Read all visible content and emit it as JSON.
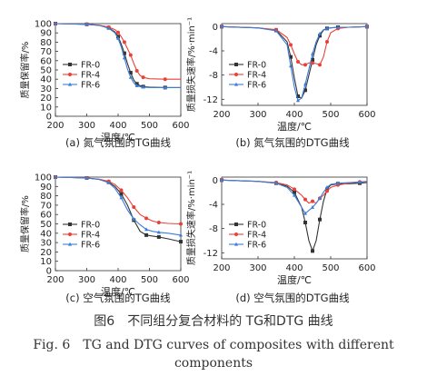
{
  "chart_data": [
    {
      "type": "line",
      "panel": "a",
      "caption": "(a) 氮气氛围的TG曲线",
      "xlabel": "温度/℃",
      "ylabel": "质量保留率/%",
      "xlim": [
        200,
        600
      ],
      "ylim": [
        0,
        100
      ],
      "xticks": [
        200,
        300,
        400,
        500,
        600
      ],
      "yticks": [
        0,
        10,
        20,
        30,
        40,
        50,
        60,
        70,
        80,
        90,
        100
      ],
      "legend_position": "left-middle",
      "x": [
        200,
        250,
        300,
        340,
        370,
        390,
        400,
        410,
        420,
        430,
        440,
        450,
        460,
        470,
        480,
        500,
        550,
        600
      ],
      "series": [
        {
          "name": "FR-0",
          "color": "#333333",
          "values": [
            100,
            99.7,
            99.2,
            98,
            95.5,
            91,
            86,
            78,
            68,
            57,
            47,
            39,
            35,
            33,
            32,
            31.5,
            31,
            31
          ]
        },
        {
          "name": "FR-4",
          "color": "#e8413a",
          "values": [
            100,
            99.7,
            99.3,
            98.3,
            96.2,
            93.5,
            90.5,
            86,
            80,
            73,
            66,
            57,
            49,
            44,
            42,
            40.5,
            40,
            40
          ]
        },
        {
          "name": "FR-6",
          "color": "#3b7dd8",
          "values": [
            100,
            99.7,
            99.2,
            98,
            95,
            90,
            84,
            75,
            63,
            51,
            42,
            36,
            33,
            32,
            31.5,
            31,
            31,
            31
          ]
        }
      ]
    },
    {
      "type": "line",
      "panel": "b",
      "caption": "(b) 氮气氛围的DTG曲线",
      "xlabel": "温度/℃",
      "ylabel": "质量损失速率/%·min⁻¹",
      "xlim": [
        200,
        600
      ],
      "ylim": [
        -13,
        0.5
      ],
      "xticks": [
        200,
        300,
        400,
        500,
        600
      ],
      "yticks": [
        0,
        -4,
        -8,
        -12
      ],
      "legend_position": "left-middle",
      "x": [
        200,
        300,
        350,
        380,
        390,
        400,
        410,
        420,
        430,
        440,
        450,
        460,
        470,
        480,
        490,
        500,
        520,
        550,
        600
      ],
      "series": [
        {
          "name": "FR-0",
          "color": "#333333",
          "values": [
            0,
            -0.2,
            -0.6,
            -2.5,
            -5,
            -8.5,
            -11.5,
            -11.8,
            -10.5,
            -8,
            -5.5,
            -3,
            -1.5,
            -0.6,
            -0.3,
            -0.2,
            -0.1,
            -0.1,
            0
          ]
        },
        {
          "name": "FR-4",
          "color": "#e8413a",
          "values": [
            0,
            -0.2,
            -0.5,
            -1.8,
            -3,
            -4.5,
            -5.8,
            -6.3,
            -6.3,
            -6,
            -6,
            -6.1,
            -6.3,
            -5,
            -2.5,
            -1,
            -0.3,
            -0.1,
            0
          ]
        },
        {
          "name": "FR-6",
          "color": "#3b7dd8",
          "values": [
            0,
            -0.2,
            -0.7,
            -3,
            -6.5,
            -10,
            -12.2,
            -11.8,
            -9.5,
            -7,
            -4.5,
            -2.5,
            -1.2,
            -0.5,
            -0.3,
            -0.2,
            -0.1,
            -0.1,
            0
          ]
        }
      ]
    },
    {
      "type": "line",
      "panel": "c",
      "caption": "(c) 空气氛围的TG曲线",
      "xlabel": "温度/℃",
      "ylabel": "质量保留率/%",
      "xlim": [
        200,
        600
      ],
      "ylim": [
        0,
        100
      ],
      "xticks": [
        200,
        300,
        400,
        500,
        600
      ],
      "yticks": [
        0,
        10,
        20,
        30,
        40,
        50,
        60,
        70,
        80,
        90,
        100
      ],
      "legend_position": "left-middle",
      "x": [
        200,
        250,
        300,
        340,
        370,
        390,
        410,
        430,
        450,
        470,
        490,
        510,
        530,
        560,
        600
      ],
      "series": [
        {
          "name": "FR-0",
          "color": "#333333",
          "values": [
            100,
            99.6,
            99,
            97.5,
            94.5,
            90,
            82,
            70,
            54,
            42,
            38,
            37,
            36,
            34,
            31
          ]
        },
        {
          "name": "FR-4",
          "color": "#e8413a",
          "values": [
            100,
            99.6,
            99,
            97.8,
            95.5,
            92,
            86,
            78,
            68,
            60,
            56,
            53,
            51.5,
            50.5,
            50
          ]
        },
        {
          "name": "FR-6",
          "color": "#3b7dd8",
          "values": [
            100,
            99.6,
            99,
            97.5,
            94,
            88,
            78,
            65,
            55,
            49,
            44,
            42,
            41,
            40,
            38
          ]
        }
      ]
    },
    {
      "type": "line",
      "panel": "d",
      "caption": "(d) 空气氛围的DTG曲线",
      "xlabel": "温度/℃",
      "ylabel": "质量损失速率/%·min⁻¹",
      "xlim": [
        200,
        600
      ],
      "ylim": [
        -13,
        0.5
      ],
      "xticks": [
        200,
        300,
        400,
        500,
        600
      ],
      "yticks": [
        0,
        -4,
        -8,
        -12
      ],
      "legend_position": "left-middle",
      "x": [
        200,
        300,
        350,
        380,
        400,
        420,
        430,
        440,
        450,
        460,
        470,
        480,
        490,
        500,
        520,
        550,
        580,
        600
      ],
      "series": [
        {
          "name": "FR-0",
          "color": "#333333",
          "values": [
            0,
            -0.2,
            -0.5,
            -1,
            -2,
            -4.5,
            -7,
            -10,
            -11.7,
            -10,
            -6.5,
            -3.5,
            -1.5,
            -0.8,
            -0.6,
            -0.6,
            -0.5,
            -0.4
          ]
        },
        {
          "name": "FR-4",
          "color": "#e8413a",
          "values": [
            0,
            -0.2,
            -0.4,
            -0.8,
            -1.5,
            -2.5,
            -3.2,
            -3.8,
            -3.5,
            -3.8,
            -3,
            -2.5,
            -1.8,
            -1.2,
            -0.8,
            -0.5,
            -0.3,
            -0.2
          ]
        },
        {
          "name": "FR-6",
          "color": "#3b7dd8",
          "values": [
            0,
            -0.2,
            -0.5,
            -1.2,
            -2.5,
            -4.5,
            -5.5,
            -5,
            -4.5,
            -3.8,
            -3,
            -2,
            -1.2,
            -0.7,
            -0.5,
            -0.4,
            -0.3,
            -0.3
          ]
        }
      ]
    }
  ],
  "figure_caption": {
    "zh": "图6　不同组分复合材料的 TG和DTG 曲线",
    "en_line1": "Fig. 6　TG and DTG curves of composites with different",
    "en_line2": "components"
  }
}
